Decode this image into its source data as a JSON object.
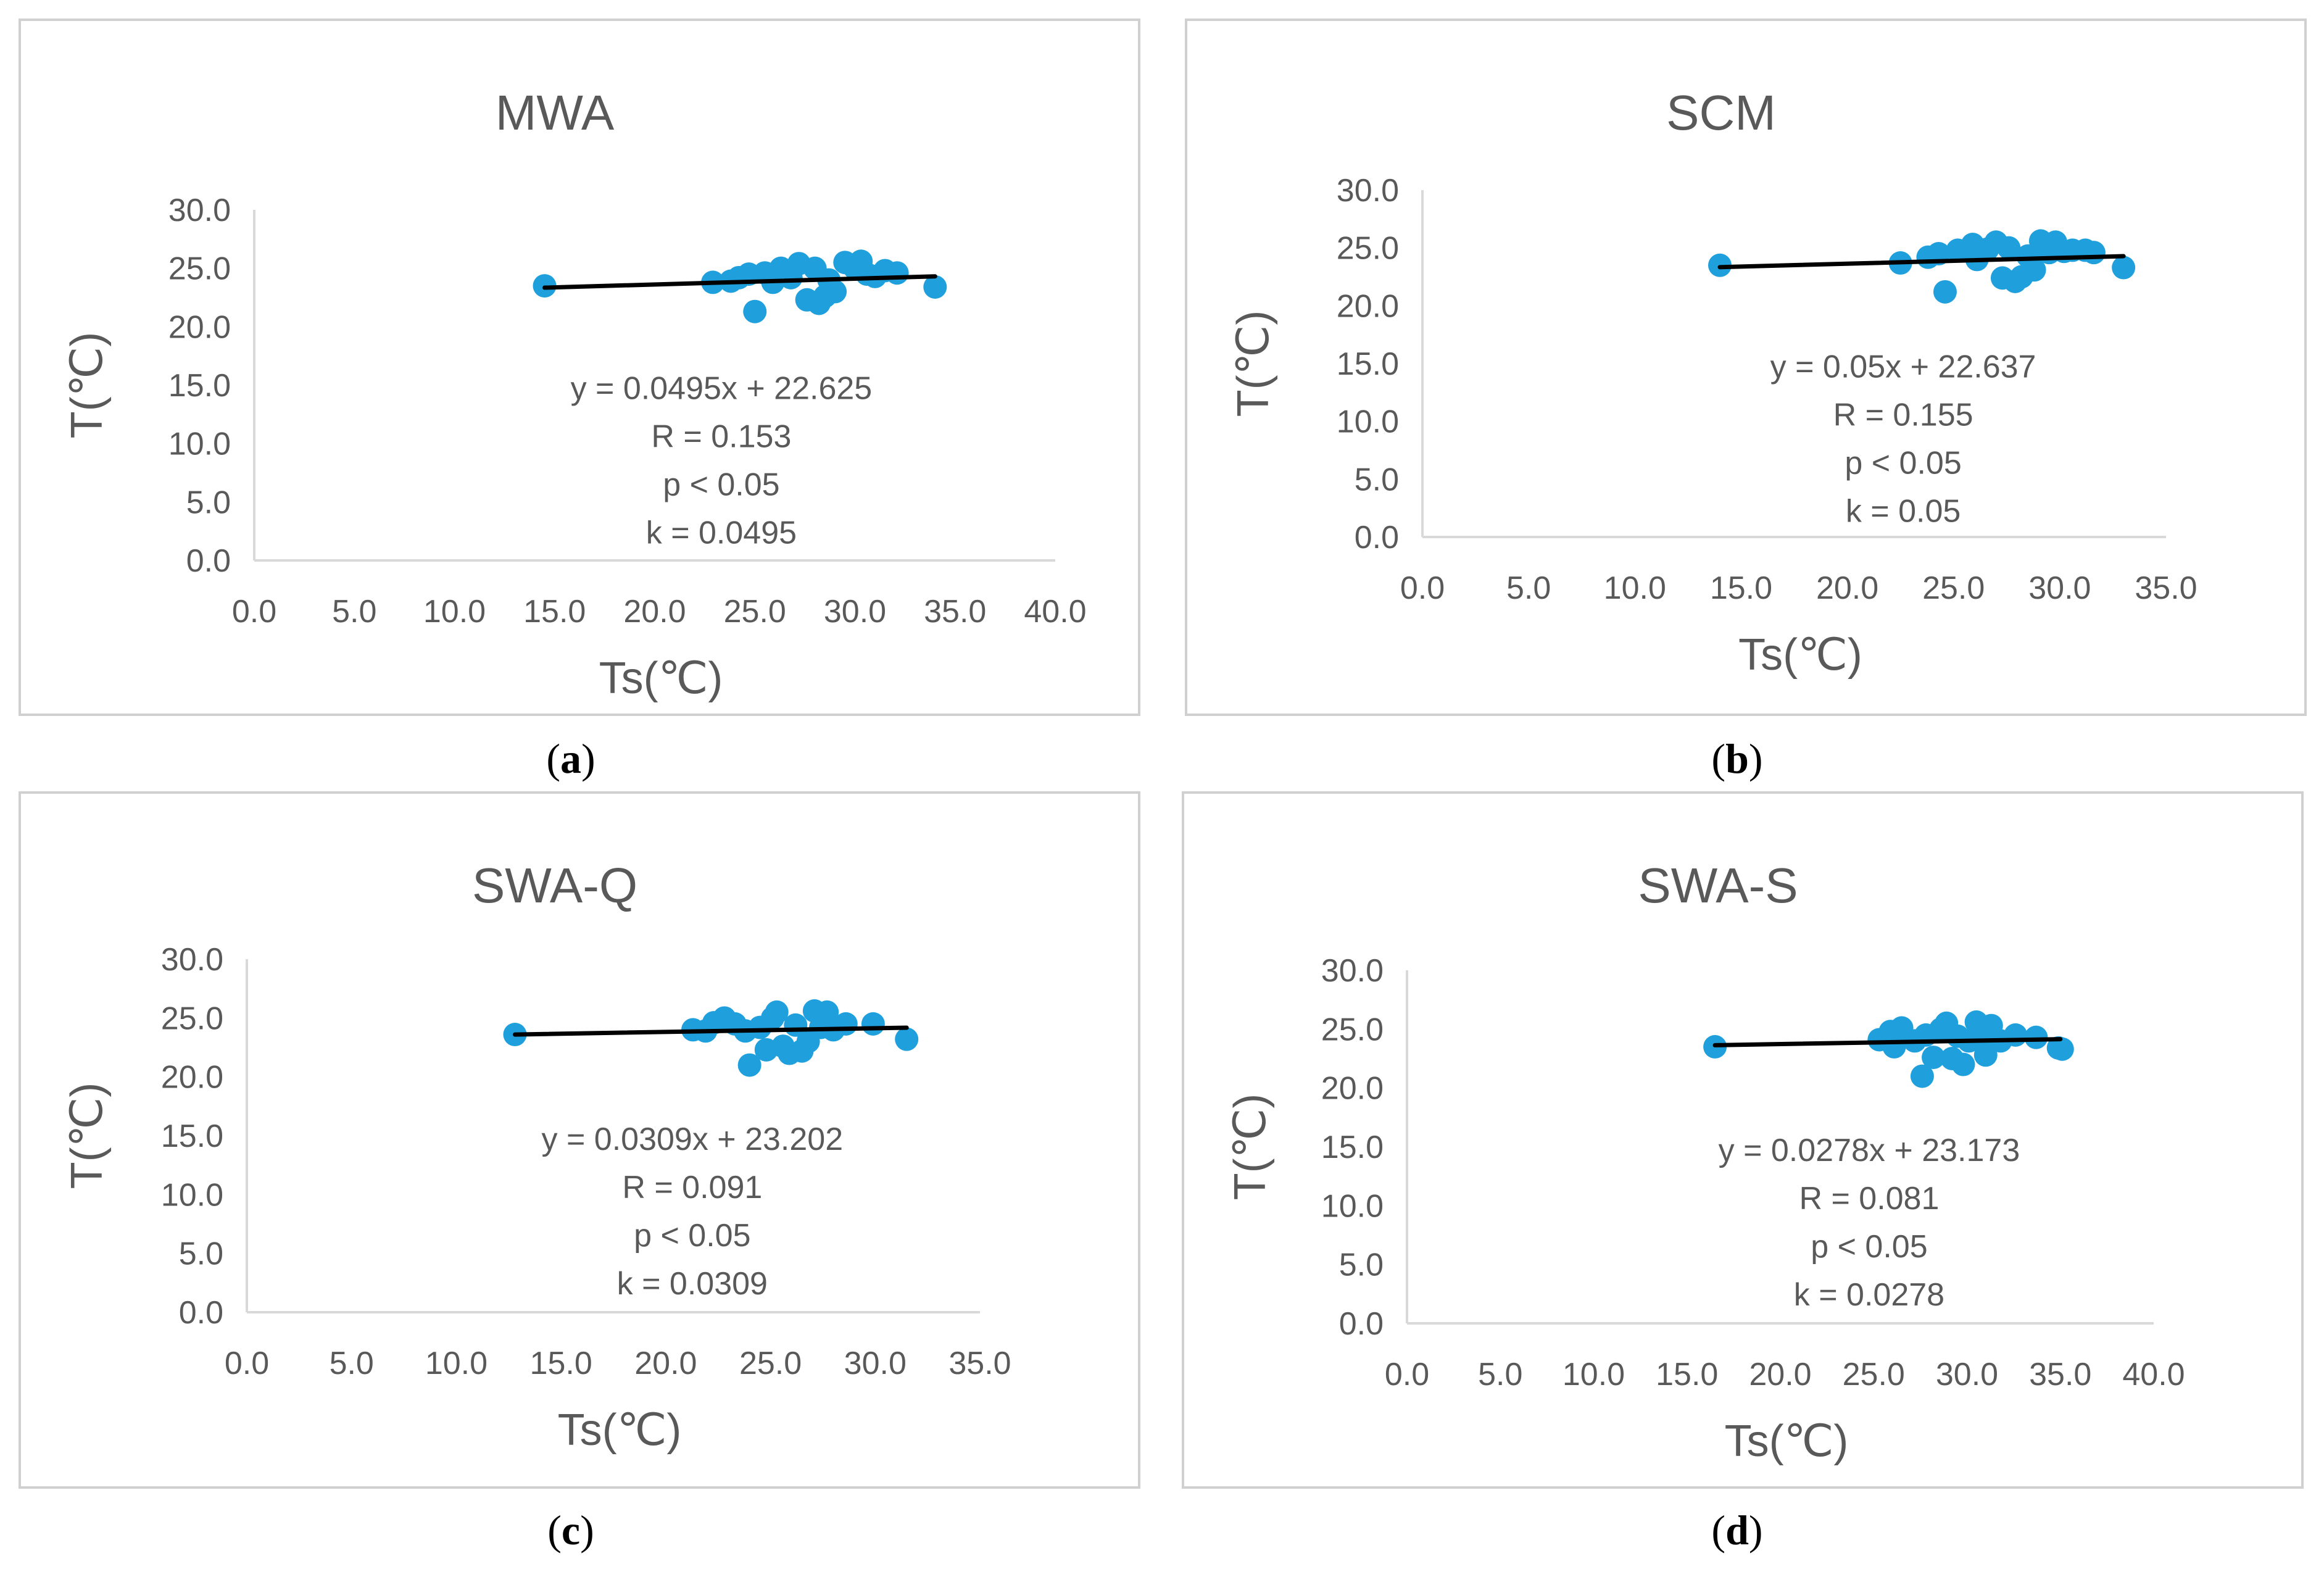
{
  "chart_data": [
    {
      "id": "a",
      "type": "scatter",
      "title": "MWA",
      "xlabel": "Ts(℃)",
      "ylabel": "T(℃)",
      "xlim": [
        0,
        40
      ],
      "ylim": [
        0,
        30
      ],
      "xticks": [
        "0.0",
        "5.0",
        "10.0",
        "15.0",
        "20.0",
        "25.0",
        "30.0",
        "35.0",
        "40.0"
      ],
      "yticks": [
        "0.0",
        "5.0",
        "10.0",
        "15.0",
        "20.0",
        "25.0",
        "30.0"
      ],
      "grid": false,
      "caption": "a",
      "trendline": {
        "slope": 0.0495,
        "intercept": 22.625,
        "x_range": [
          14.5,
          34.0
        ]
      },
      "annotations": [
        "y = 0.0495x + 22.625",
        "R = 0.153",
        "p < 0.05",
        "k = 0.0495"
      ],
      "points": [
        [
          14.5,
          23.5
        ],
        [
          22.9,
          23.8
        ],
        [
          23.8,
          23.9
        ],
        [
          24.2,
          24.2
        ],
        [
          24.7,
          24.5
        ],
        [
          25.0,
          21.3
        ],
        [
          25.5,
          24.6
        ],
        [
          25.9,
          23.8
        ],
        [
          26.3,
          25.0
        ],
        [
          26.8,
          24.2
        ],
        [
          27.2,
          25.4
        ],
        [
          27.6,
          22.3
        ],
        [
          28.0,
          25.0
        ],
        [
          28.2,
          22.0
        ],
        [
          28.5,
          22.6
        ],
        [
          28.7,
          24.0
        ],
        [
          29.0,
          23.0
        ],
        [
          29.5,
          25.5
        ],
        [
          30.0,
          25.0
        ],
        [
          30.3,
          25.6
        ],
        [
          30.6,
          24.5
        ],
        [
          31.0,
          24.3
        ],
        [
          31.5,
          24.8
        ],
        [
          32.1,
          24.6
        ],
        [
          34.0,
          23.4
        ]
      ]
    },
    {
      "id": "b",
      "type": "scatter",
      "title": "SCM",
      "xlabel": "Ts(℃)",
      "ylabel": "T(℃)",
      "xlim": [
        0,
        35
      ],
      "ylim": [
        0,
        30
      ],
      "xticks": [
        "0.0",
        "5.0",
        "10.0",
        "15.0",
        "20.0",
        "25.0",
        "30.0",
        "35.0"
      ],
      "yticks": [
        "0.0",
        "5.0",
        "10.0",
        "15.0",
        "20.0",
        "25.0",
        "30.0"
      ],
      "grid": false,
      "caption": "b",
      "trendline": {
        "slope": 0.05,
        "intercept": 22.637,
        "x_range": [
          14.0,
          33.0
        ]
      },
      "annotations": [
        "y = 0.05x + 22.637",
        "R = 0.155",
        "p < 0.05",
        "k = 0.05"
      ],
      "points": [
        [
          14.0,
          23.5
        ],
        [
          22.5,
          23.7
        ],
        [
          23.8,
          24.2
        ],
        [
          24.3,
          24.5
        ],
        [
          24.6,
          21.2
        ],
        [
          25.2,
          24.8
        ],
        [
          25.9,
          25.3
        ],
        [
          26.1,
          24.0
        ],
        [
          26.6,
          24.9
        ],
        [
          27.0,
          25.5
        ],
        [
          27.3,
          22.4
        ],
        [
          27.6,
          25.0
        ],
        [
          27.9,
          22.1
        ],
        [
          28.2,
          22.5
        ],
        [
          28.5,
          24.3
        ],
        [
          28.8,
          23.1
        ],
        [
          29.1,
          25.6
        ],
        [
          29.5,
          24.6
        ],
        [
          29.8,
          25.5
        ],
        [
          30.2,
          24.7
        ],
        [
          30.6,
          24.8
        ],
        [
          31.2,
          24.8
        ],
        [
          31.6,
          24.6
        ],
        [
          33.0,
          23.3
        ]
      ]
    },
    {
      "id": "c",
      "type": "scatter",
      "title": "SWA-Q",
      "xlabel": "Ts(℃)",
      "ylabel": "T(℃)",
      "xlim": [
        0,
        35
      ],
      "ylim": [
        0,
        30
      ],
      "xticks": [
        "0.0",
        "5.0",
        "10.0",
        "15.0",
        "20.0",
        "25.0",
        "30.0",
        "35.0"
      ],
      "yticks": [
        "0.0",
        "5.0",
        "10.0",
        "15.0",
        "20.0",
        "25.0",
        "30.0"
      ],
      "grid": false,
      "caption": "c",
      "trendline": {
        "slope": 0.0309,
        "intercept": 23.202,
        "x_range": [
          12.8,
          31.5
        ]
      },
      "annotations": [
        "y = 0.0309x + 23.202",
        "R = 0.091",
        "p < 0.05",
        "k = 0.0309"
      ],
      "points": [
        [
          12.8,
          23.6
        ],
        [
          21.3,
          24.0
        ],
        [
          21.9,
          23.9
        ],
        [
          22.3,
          24.6
        ],
        [
          22.8,
          25.0
        ],
        [
          23.3,
          24.5
        ],
        [
          23.8,
          23.9
        ],
        [
          24.0,
          21.0
        ],
        [
          24.5,
          24.2
        ],
        [
          24.8,
          22.3
        ],
        [
          25.1,
          25.0
        ],
        [
          25.3,
          25.5
        ],
        [
          25.6,
          22.6
        ],
        [
          25.9,
          22.0
        ],
        [
          26.2,
          24.4
        ],
        [
          26.5,
          22.2
        ],
        [
          26.8,
          23.0
        ],
        [
          27.1,
          25.6
        ],
        [
          27.4,
          24.2
        ],
        [
          27.7,
          25.5
        ],
        [
          28.0,
          24.0
        ],
        [
          28.6,
          24.5
        ],
        [
          29.9,
          24.5
        ],
        [
          31.5,
          23.2
        ]
      ]
    },
    {
      "id": "d",
      "type": "scatter",
      "title": "SWA-S",
      "xlabel": "Ts(℃)",
      "ylabel": "T(℃)",
      "xlim": [
        0,
        40
      ],
      "ylim": [
        0,
        30
      ],
      "xticks": [
        "0.0",
        "5.0",
        "10.0",
        "15.0",
        "20.0",
        "25.0",
        "30.0",
        "35.0",
        "40.0"
      ],
      "yticks": [
        "0.0",
        "5.0",
        "10.0",
        "15.0",
        "20.0",
        "25.0",
        "30.0"
      ],
      "grid": false,
      "caption": "d",
      "trendline": {
        "slope": 0.0278,
        "intercept": 23.173,
        "x_range": [
          16.5,
          35.0
        ]
      },
      "annotations": [
        "y = 0.0278x + 23.173",
        "R = 0.081",
        "p < 0.05",
        "k = 0.0278"
      ],
      "points": [
        [
          16.5,
          23.5
        ],
        [
          25.3,
          24.1
        ],
        [
          25.9,
          24.8
        ],
        [
          26.1,
          23.5
        ],
        [
          26.5,
          25.1
        ],
        [
          27.2,
          24.0
        ],
        [
          27.6,
          21.0
        ],
        [
          27.8,
          24.5
        ],
        [
          28.2,
          22.6
        ],
        [
          28.6,
          25.0
        ],
        [
          28.9,
          25.5
        ],
        [
          29.2,
          22.5
        ],
        [
          29.5,
          24.4
        ],
        [
          29.8,
          22.0
        ],
        [
          30.1,
          24.0
        ],
        [
          30.5,
          25.6
        ],
        [
          30.8,
          24.5
        ],
        [
          31.0,
          22.8
        ],
        [
          31.3,
          25.3
        ],
        [
          31.8,
          24.0
        ],
        [
          32.6,
          24.5
        ],
        [
          33.7,
          24.3
        ],
        [
          34.9,
          23.4
        ],
        [
          35.1,
          23.3
        ]
      ]
    }
  ]
}
